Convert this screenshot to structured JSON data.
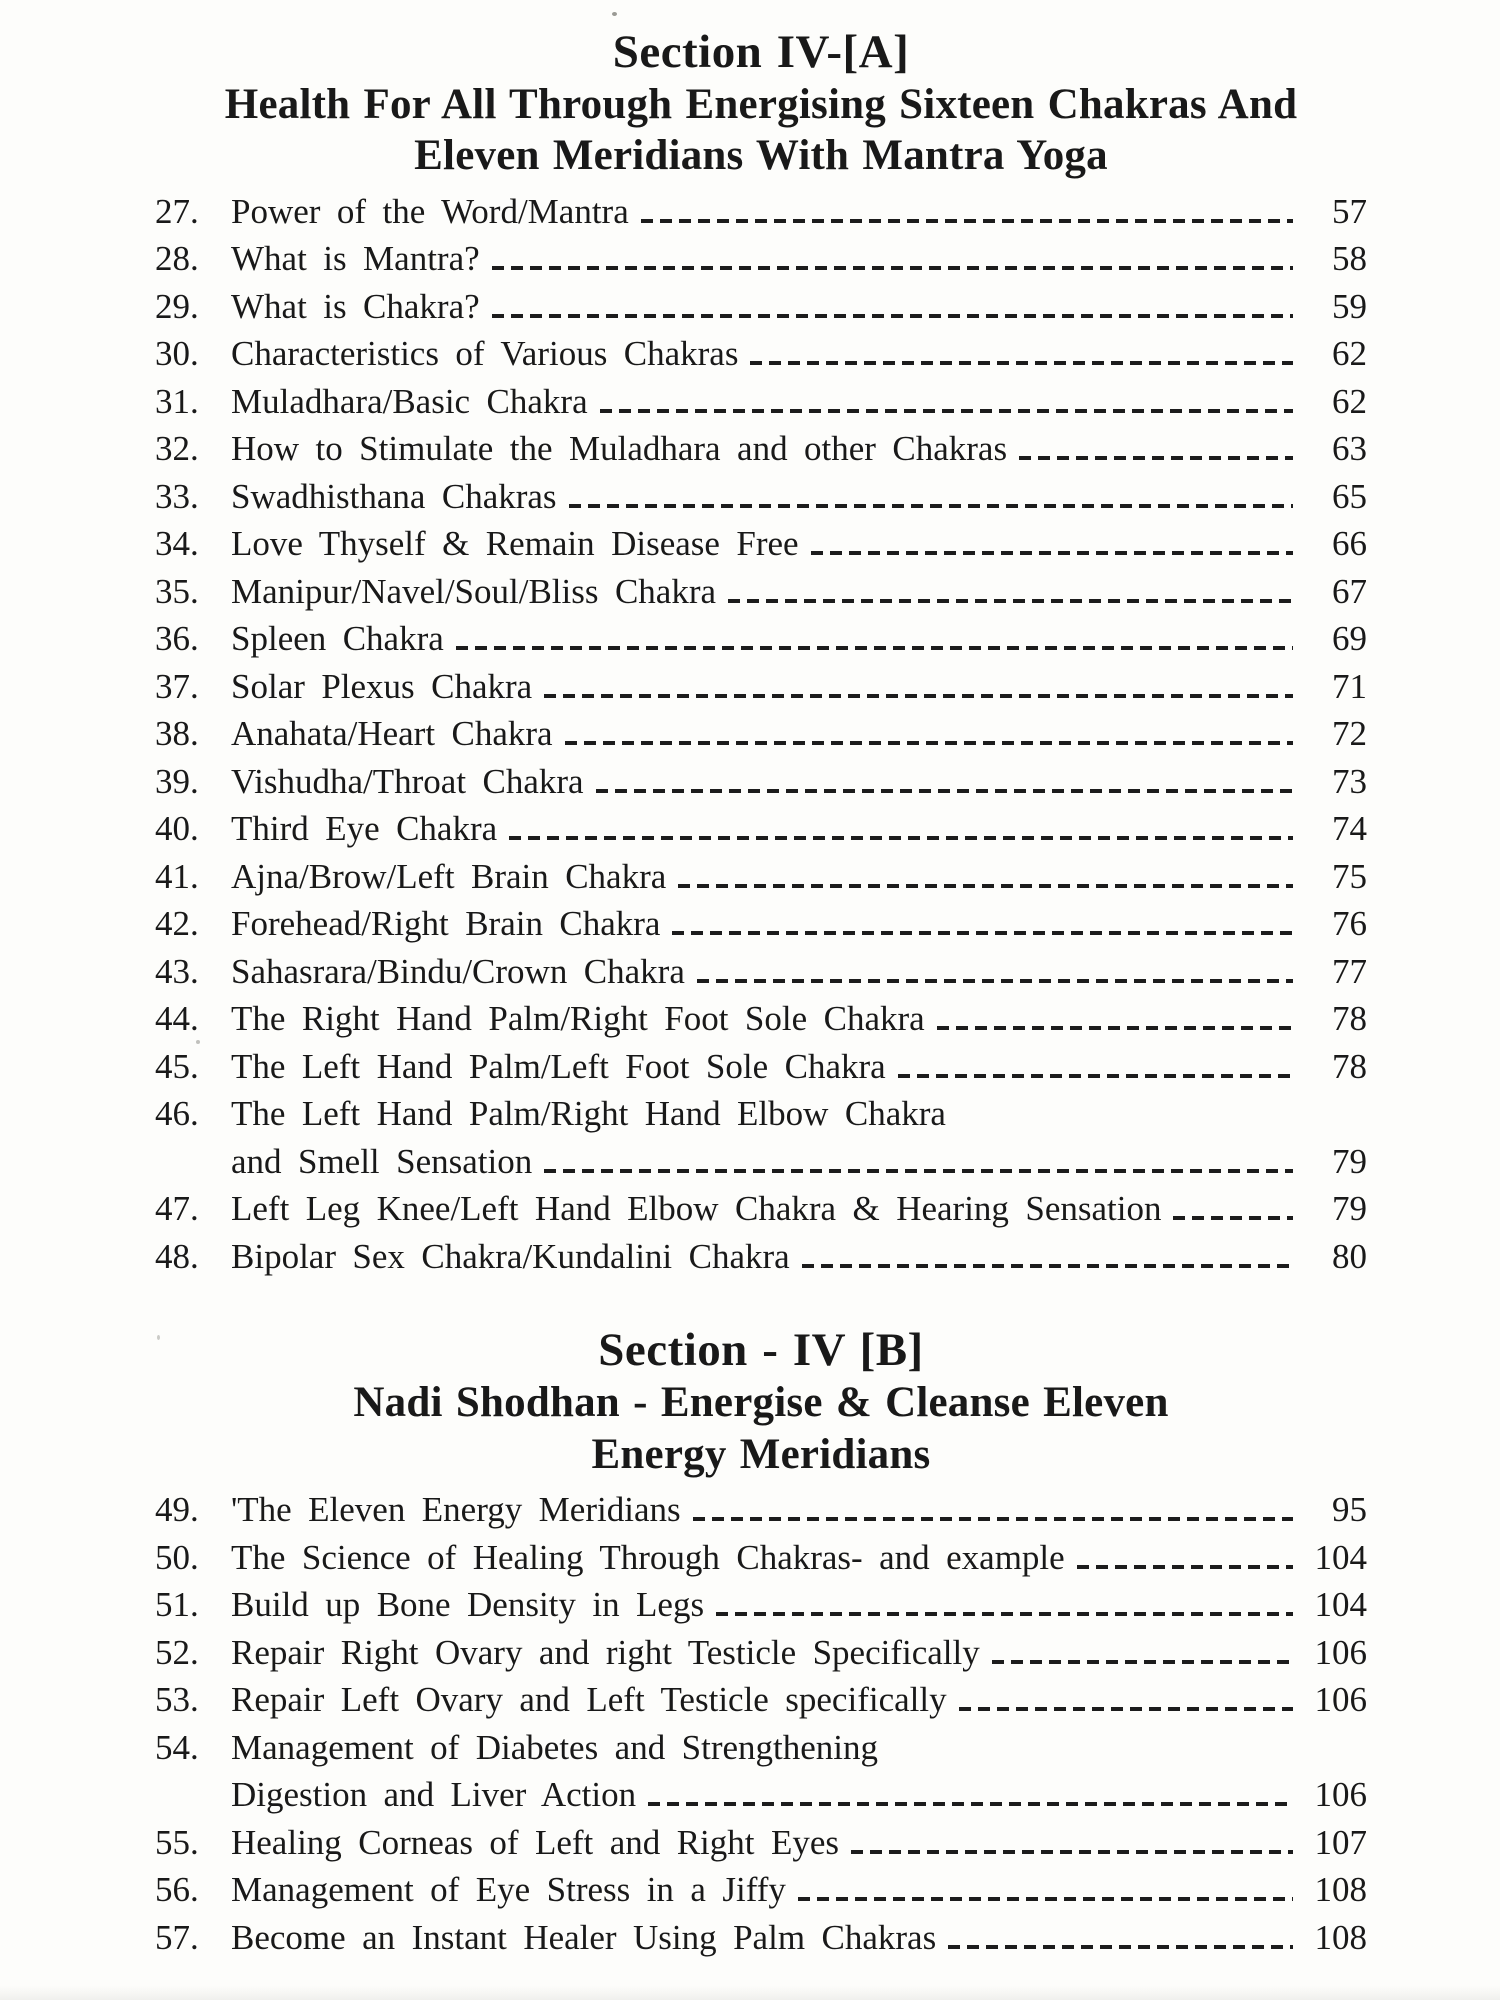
{
  "colors": {
    "ink": "#1a1a1a",
    "paper": "#fdfdfb"
  },
  "section_a": {
    "title_line1": "Section IV-[A]",
    "title_line2": "Health For All Through Energising Sixteen Chakras And",
    "title_line3": "Eleven Meridians With Mantra Yoga",
    "entries": [
      {
        "num": "27.",
        "title": "Power of the Word/Mantra",
        "page": "57"
      },
      {
        "num": "28.",
        "title": "What is Mantra?",
        "page": "58"
      },
      {
        "num": "29.",
        "title": "What is Chakra?",
        "page": "59"
      },
      {
        "num": "30.",
        "title": "Characteristics of Various Chakras",
        "page": "62"
      },
      {
        "num": "31.",
        "title": "Muladhara/Basic Chakra",
        "page": "62"
      },
      {
        "num": "32.",
        "title": "How to Stimulate the Muladhara and other Chakras",
        "page": "63"
      },
      {
        "num": "33.",
        "title": "Swadhisthana Chakras",
        "page": "65"
      },
      {
        "num": "34.",
        "title": "Love Thyself & Remain Disease Free",
        "page": "66"
      },
      {
        "num": "35.",
        "title": "Manipur/Navel/Soul/Bliss Chakra",
        "page": "67"
      },
      {
        "num": "36.",
        "title": "Spleen Chakra",
        "page": "69"
      },
      {
        "num": "37.",
        "title": "Solar Plexus Chakra",
        "page": "71"
      },
      {
        "num": "38.",
        "title": "Anahata/Heart Chakra",
        "page": "72"
      },
      {
        "num": "39.",
        "title": "Vishudha/Throat Chakra",
        "page": "73"
      },
      {
        "num": "40.",
        "title": "Third Eye Chakra",
        "page": "74"
      },
      {
        "num": "41.",
        "title": "Ajna/Brow/Left Brain Chakra",
        "page": "75"
      },
      {
        "num": "42.",
        "title": "Forehead/Right Brain Chakra",
        "page": "76"
      },
      {
        "num": "43.",
        "title": "Sahasrara/Bindu/Crown Chakra",
        "page": "77"
      },
      {
        "num": "44.",
        "title": "The Right Hand Palm/Right Foot Sole Chakra",
        "page": "78"
      },
      {
        "num": "45.",
        "title": "The Left Hand Palm/Left Foot Sole Chakra",
        "page": "78"
      },
      {
        "num": "46.",
        "title": "The Left Hand Palm/Right Hand Elbow Chakra",
        "title2": "and Smell Sensation",
        "page": "79"
      },
      {
        "num": "47.",
        "title": "Left Leg Knee/Left Hand Elbow Chakra & Hearing Sensation",
        "page": "79"
      },
      {
        "num": "48.",
        "title": "Bipolar Sex Chakra/Kundalini Chakra",
        "page": "80"
      }
    ]
  },
  "section_b": {
    "title_line1": "Section - IV [B]",
    "title_line2": "Nadi Shodhan - Energise & Cleanse Eleven",
    "title_line3": "Energy Meridians",
    "entries": [
      {
        "num": "49.",
        "title": "'The Eleven Energy Meridians",
        "page": "95"
      },
      {
        "num": "50.",
        "title": "The Science of Healing Through Chakras- and example",
        "page": "104"
      },
      {
        "num": "51.",
        "title": "Build up Bone Density in Legs",
        "page": "104"
      },
      {
        "num": "52.",
        "title": "Repair Right Ovary and right Testicle Specifically",
        "page": "106"
      },
      {
        "num": "53.",
        "title": "Repair Left Ovary and Left Testicle specifically",
        "page": "106"
      },
      {
        "num": "54.",
        "title": "Management of Diabetes and Strengthening",
        "title2": "Digestion and Liver Action",
        "page": "106"
      },
      {
        "num": "55.",
        "title": "Healing Corneas of Left and Right Eyes",
        "page": "107"
      },
      {
        "num": "56.",
        "title": "Management of Eye Stress in a Jiffy",
        "page": "108"
      },
      {
        "num": "57.",
        "title": "Become an Instant Healer Using Palm Chakras",
        "page": "108"
      }
    ]
  }
}
